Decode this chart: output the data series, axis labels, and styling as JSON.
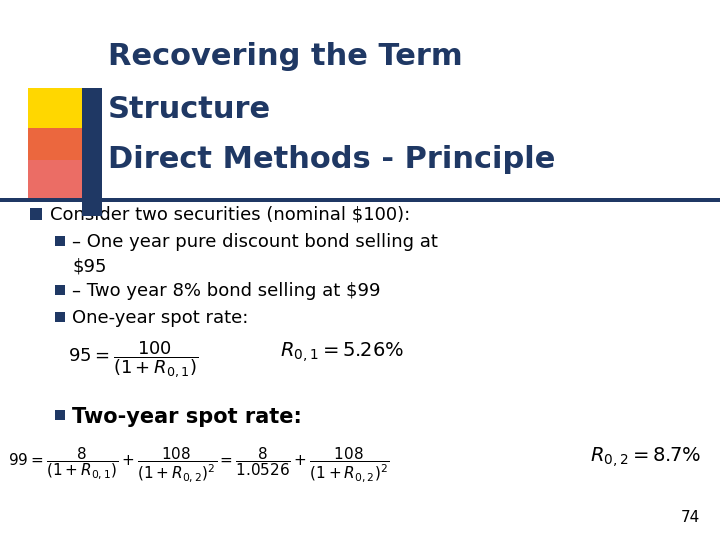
{
  "title_line1": "Recovering the Term",
  "title_line2": "Structure",
  "title_line3": "Direct Methods - Principle",
  "title_color": "#1F3864",
  "background_color": "#FFFFFF",
  "bullet_color": "#1F3864",
  "text_color": "#000000",
  "page_number": "74",
  "bullet1": "Consider two securities (nominal $100):",
  "bullet2_part1": "– One year pure discount bond selling at",
  "bullet2_part2": "$95",
  "bullet3": "– Two year 8% bond selling at $99",
  "bullet4": "One-year spot rate:",
  "bullet5": "Two-year spot rate:"
}
